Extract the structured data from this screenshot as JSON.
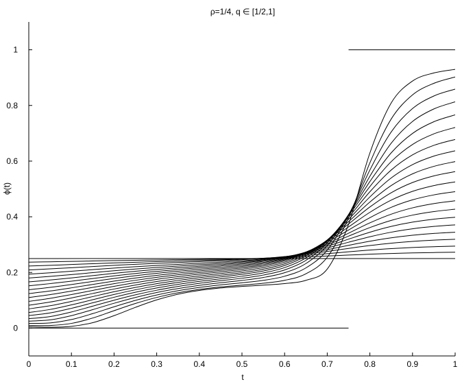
{
  "chart_data": {
    "type": "line",
    "title": "ρ=1/4, q ∈ [1/2,1]",
    "xlabel": "t",
    "ylabel": "ϕ(t)",
    "xlim": [
      0,
      1
    ],
    "ylim": [
      -0.1,
      1.1
    ],
    "xticks": [
      0,
      0.1,
      0.2,
      0.3,
      0.4,
      0.5,
      0.6,
      0.7,
      0.8,
      0.9,
      1
    ],
    "yticks": [
      0,
      0.2,
      0.4,
      0.6,
      0.8,
      1
    ],
    "xtick_labels": [
      "0",
      "0.1",
      "0.2",
      "0.3",
      "0.4",
      "0.5",
      "0.6",
      "0.7",
      "0.8",
      "0.9",
      "1"
    ],
    "ytick_labels": [
      "0",
      "0.2",
      "0.4",
      "0.6",
      "0.8",
      "1"
    ],
    "grid": false,
    "line_color": "#000000",
    "x": [
      0,
      0.05,
      0.1,
      0.15,
      0.2,
      0.25,
      0.3,
      0.35,
      0.4,
      0.45,
      0.5,
      0.55,
      0.6,
      0.65,
      0.7,
      0.75,
      0.8,
      0.85,
      0.9,
      0.95,
      1
    ],
    "series": [
      {
        "values": [
          0.25,
          0.25,
          0.25,
          0.25,
          0.25,
          0.25,
          0.25,
          0.25,
          0.25,
          0.25,
          0.25,
          0.25,
          0.25,
          0.25,
          0.25,
          0.25,
          0.25,
          0.25,
          0.25,
          0.25,
          0.25
        ]
      },
      {
        "values": [
          0.237,
          0.2383,
          0.2397,
          0.2412,
          0.2425,
          0.2437,
          0.2448,
          0.2459,
          0.2469,
          0.248,
          0.2493,
          0.251,
          0.2532,
          0.2559,
          0.2591,
          0.2624,
          0.2655,
          0.2681,
          0.2701,
          0.2716,
          0.2726
        ]
      },
      {
        "values": [
          0.223,
          0.2256,
          0.2285,
          0.2315,
          0.2342,
          0.2367,
          0.2389,
          0.241,
          0.2431,
          0.2453,
          0.2479,
          0.2512,
          0.2556,
          0.2612,
          0.2675,
          0.2742,
          0.2804,
          0.2856,
          0.2896,
          0.2925,
          0.2946
        ]
      },
      {
        "values": [
          0.209,
          0.2128,
          0.217,
          0.2213,
          0.2255,
          0.2293,
          0.2327,
          0.2358,
          0.2389,
          0.2421,
          0.2458,
          0.2505,
          0.2569,
          0.2653,
          0.2754,
          0.2863,
          0.2966,
          0.3051,
          0.3115,
          0.3161,
          0.3193
        ]
      },
      {
        "values": [
          0.194,
          0.1989,
          0.2044,
          0.2101,
          0.2156,
          0.2206,
          0.225,
          0.2291,
          0.2331,
          0.2372,
          0.242,
          0.2482,
          0.2566,
          0.2679,
          0.2818,
          0.2973,
          0.312,
          0.3243,
          0.3336,
          0.3401,
          0.3445
        ]
      },
      {
        "values": [
          0.18,
          0.1858,
          0.1923,
          0.1993,
          0.2061,
          0.2123,
          0.2178,
          0.2228,
          0.2276,
          0.2325,
          0.2382,
          0.2457,
          0.256,
          0.2702,
          0.2881,
          0.3086,
          0.3282,
          0.3446,
          0.3568,
          0.3653,
          0.371
        ]
      },
      {
        "values": [
          0.166,
          0.1728,
          0.1804,
          0.1887,
          0.1968,
          0.2042,
          0.2108,
          0.2167,
          0.2222,
          0.2279,
          0.2344,
          0.243,
          0.255,
          0.2719,
          0.2939,
          0.3196,
          0.3445,
          0.3653,
          0.3807,
          0.3913,
          0.3984
        ]
      },
      {
        "values": [
          0.152,
          0.1598,
          0.1686,
          0.1782,
          0.1876,
          0.1962,
          0.2038,
          0.2106,
          0.2169,
          0.2232,
          0.2304,
          0.2399,
          0.2533,
          0.2729,
          0.2991,
          0.3305,
          0.3613,
          0.387,
          0.4059,
          0.4187,
          0.4272
        ]
      },
      {
        "values": [
          0.138,
          0.1465,
          0.1566,
          0.1676,
          0.1784,
          0.1882,
          0.1968,
          0.2044,
          0.2113,
          0.2181,
          0.2258,
          0.236,
          0.2508,
          0.2729,
          0.3033,
          0.3408,
          0.3781,
          0.4093,
          0.4321,
          0.4474,
          0.4574
        ]
      },
      {
        "values": [
          0.124,
          0.1334,
          0.1447,
          0.1569,
          0.169,
          0.18,
          0.1896,
          0.198,
          0.2056,
          0.2129,
          0.2212,
          0.2322,
          0.2484,
          0.2733,
          0.3084,
          0.3524,
          0.3968,
          0.4339,
          0.4608,
          0.4786,
          0.4902
        ]
      },
      {
        "values": [
          0.11,
          0.1203,
          0.1328,
          0.1463,
          0.1597,
          0.1718,
          0.1824,
          0.1916,
          0.1998,
          0.2076,
          0.2163,
          0.2279,
          0.2453,
          0.2727,
          0.3123,
          0.3636,
          0.4159,
          0.4597,
          0.4913,
          0.512,
          0.5254
        ]
      },
      {
        "values": [
          0.096,
          0.107,
          0.1206,
          0.1354,
          0.1501,
          0.1634,
          0.175,
          0.185,
          0.1938,
          0.2021,
          0.2111,
          0.2232,
          0.2418,
          0.2714,
          0.3155,
          0.3741,
          0.4351,
          0.4864,
          0.5231,
          0.5469,
          0.5621
        ]
      },
      {
        "values": [
          0.082,
          0.0937,
          0.1083,
          0.1244,
          0.1404,
          0.1548,
          0.1673,
          0.1781,
          0.1875,
          0.1961,
          0.2053,
          0.2176,
          0.2368,
          0.2682,
          0.3164,
          0.3826,
          0.4528,
          0.5121,
          0.5542,
          0.5812,
          0.5983
        ]
      },
      {
        "values": [
          0.069,
          0.0804,
          0.0959,
          0.1133,
          0.1306,
          0.1462,
          0.1597,
          0.1712,
          0.1811,
          0.19,
          0.1992,
          0.2116,
          0.2312,
          0.2643,
          0.3166,
          0.3909,
          0.4712,
          0.5394,
          0.5874,
          0.618,
          0.6371
        ]
      },
      {
        "values": [
          0.056,
          0.0671,
          0.0835,
          0.1021,
          0.1208,
          0.1376,
          0.1521,
          0.1643,
          0.1747,
          0.1839,
          0.1932,
          0.2053,
          0.2249,
          0.2592,
          0.3156,
          0.3983,
          0.4898,
          0.5679,
          0.6224,
          0.6567,
          0.6779
        ]
      },
      {
        "values": [
          0.045,
          0.0545,
          0.0711,
          0.0909,
          0.1108,
          0.1288,
          0.1442,
          0.1571,
          0.1679,
          0.1772,
          0.1863,
          0.1982,
          0.2174,
          0.2522,
          0.3123,
          0.4042,
          0.5085,
          0.5981,
          0.6598,
          0.6979,
          0.721
        ]
      },
      {
        "values": [
          0.034,
          0.0415,
          0.058,
          0.0789,
          0.1003,
          0.1196,
          0.1361,
          0.1497,
          0.1609,
          0.1704,
          0.1792,
          0.1906,
          0.2089,
          0.2434,
          0.3061,
          0.4074,
          0.5266,
          0.6297,
          0.6995,
          0.7415,
          0.7662
        ]
      },
      {
        "values": [
          0.025,
          0.0296,
          0.0448,
          0.0664,
          0.0893,
          0.1101,
          0.1278,
          0.1421,
          0.1536,
          0.163,
          0.1714,
          0.1819,
          0.199,
          0.232,
          0.2963,
          0.4081,
          0.5455,
          0.6643,
          0.7425,
          0.7874,
          0.8129
        ]
      },
      {
        "values": [
          0.017,
          0.0186,
          0.0308,
          0.0521,
          0.0765,
          0.0995,
          0.1189,
          0.1343,
          0.146,
          0.1552,
          0.1628,
          0.1716,
          0.1863,
          0.2163,
          0.2803,
          0.4055,
          0.5679,
          0.7046,
          0.7888,
          0.8339,
          0.8587
        ]
      },
      {
        "values": [
          0.01,
          0.0094,
          0.0169,
          0.0363,
          0.0627,
          0.0885,
          0.1102,
          0.127,
          0.1391,
          0.1479,
          0.1545,
          0.1611,
          0.1716,
          0.1951,
          0.2545,
          0.3962,
          0.5937,
          0.7512,
          0.8379,
          0.8795,
          0.9022
        ]
      },
      {
        "values": [
          0.005,
          0.0033,
          0.0063,
          0.0196,
          0.0448,
          0.0745,
          0.1014,
          0.1217,
          0.1352,
          0.1442,
          0.1497,
          0.1544,
          0.1599,
          0.1717,
          0.2122,
          0.3727,
          0.6291,
          0.8089,
          0.8877,
          0.9167,
          0.9297
        ]
      }
    ],
    "limit_segments": [
      {
        "x": [
          0,
          0.75
        ],
        "values": [
          0.0,
          0.0
        ]
      },
      {
        "x": [
          0.75,
          1.0
        ],
        "values": [
          1.0,
          1.0
        ]
      }
    ]
  }
}
